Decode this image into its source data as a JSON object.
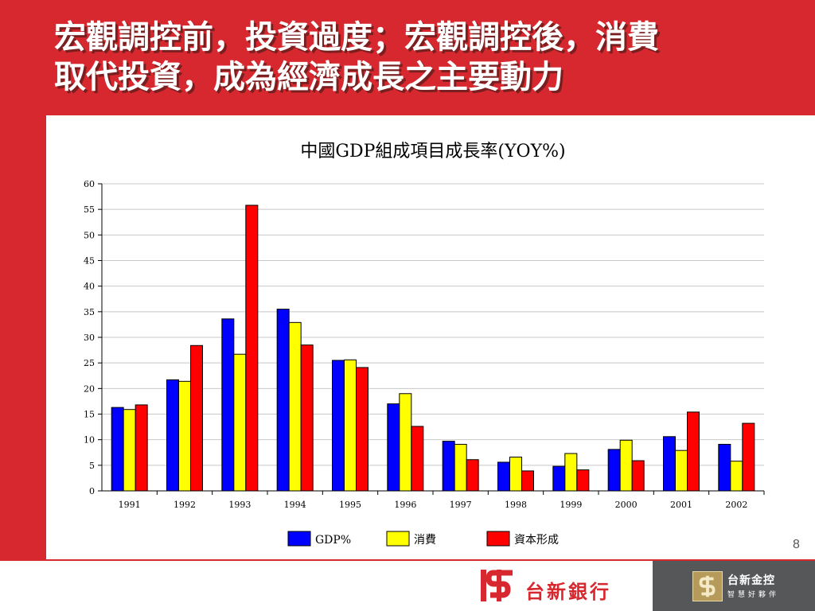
{
  "slide": {
    "title_line1": "宏觀調控前，投資過度；宏觀調控後，消費",
    "title_line2": "取代投資，成為經濟成長之主要動力",
    "page_number": "8"
  },
  "footer": {
    "bank_name": "台新銀行",
    "holding_name": "台新金控",
    "holding_slogan": "智慧好夥伴"
  },
  "chart_data": {
    "type": "bar",
    "title": "中國GDP組成項目成長率(YOY%)",
    "categories": [
      "1991",
      "1992",
      "1993",
      "1994",
      "1995",
      "1996",
      "1997",
      "1998",
      "1999",
      "2000",
      "2001",
      "2002"
    ],
    "series": [
      {
        "name": "GDP%",
        "color": "#0000ff",
        "values": [
          16.3,
          21.7,
          33.6,
          35.5,
          25.5,
          17.0,
          9.7,
          5.6,
          4.8,
          8.1,
          10.6,
          9.1
        ]
      },
      {
        "name": "消費",
        "color": "#ffff00",
        "values": [
          15.9,
          21.4,
          26.7,
          32.9,
          25.6,
          19.0,
          9.1,
          6.6,
          7.3,
          9.9,
          7.9,
          5.8
        ]
      },
      {
        "name": "資本形成",
        "color": "#ff0000",
        "values": [
          16.8,
          28.4,
          55.8,
          28.5,
          24.1,
          12.6,
          6.1,
          3.9,
          4.1,
          5.9,
          15.4,
          13.2
        ]
      }
    ],
    "ylim": [
      0,
      60
    ],
    "yticks": [
      0,
      5,
      10,
      15,
      20,
      25,
      30,
      35,
      40,
      45,
      50,
      55,
      60
    ],
    "grid": true,
    "legend": "bottom",
    "xlabel": "",
    "ylabel": ""
  }
}
